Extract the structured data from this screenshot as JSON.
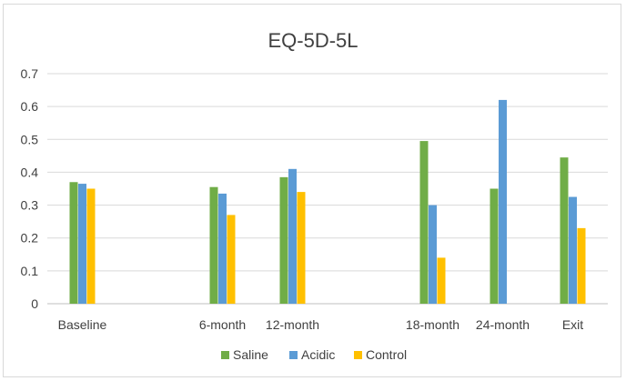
{
  "colors": {
    "saline": "#70ad47",
    "acidic": "#5b9bd5",
    "control": "#ffc000",
    "grid": "#d9d9d9",
    "axis": "#bfbfbf",
    "text": "#404040"
  },
  "chart_data": {
    "type": "bar",
    "title": "EQ-5D-5L",
    "xlabel": "",
    "ylabel": "",
    "ylim": [
      0,
      0.7
    ],
    "yticks": [
      "0",
      "0.1",
      "0.2",
      "0.3",
      "0.4",
      "0.5",
      "0.6",
      "0.7"
    ],
    "grid": true,
    "legend_position": "bottom",
    "categories": [
      "Baseline",
      "",
      "6-month",
      "12-month",
      "",
      "18-month",
      "24-month",
      "Exit"
    ],
    "series": [
      {
        "name": "Saline",
        "values": [
          0.37,
          null,
          0.355,
          0.385,
          null,
          0.495,
          0.35,
          0.445
        ]
      },
      {
        "name": "Acidic",
        "values": [
          0.365,
          null,
          0.335,
          0.41,
          null,
          0.3,
          0.62,
          0.325
        ]
      },
      {
        "name": "Control",
        "values": [
          0.35,
          null,
          0.27,
          0.34,
          null,
          0.14,
          null,
          0.23
        ]
      }
    ]
  }
}
